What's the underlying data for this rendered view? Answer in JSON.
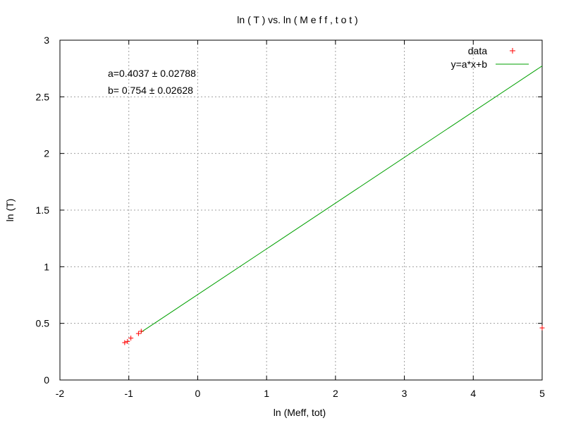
{
  "chart_data": {
    "type": "scatter",
    "title": "ln ( T )  vs.  ln ( M e f f , t o t )",
    "xlabel": "ln (Meff, tot)",
    "ylabel": "ln (T)",
    "xlim": [
      -2,
      5
    ],
    "ylim": [
      0,
      3
    ],
    "xticks": [
      -2,
      -1,
      0,
      1,
      2,
      3,
      4,
      5
    ],
    "yticks": [
      0,
      0.5,
      1,
      1.5,
      2,
      2.5,
      3
    ],
    "xtick_labels": [
      "-2",
      "-1",
      "0",
      "1",
      "2",
      "3",
      "4",
      "5"
    ],
    "ytick_labels": [
      "0",
      "0.5",
      "1",
      "1.5",
      "2",
      "2.5",
      "3"
    ],
    "grid": true,
    "legend_position": "top-right",
    "series": [
      {
        "name": "data",
        "kind": "points",
        "marker": "+",
        "color": "#ff0000",
        "points": [
          [
            -1.06,
            0.33
          ],
          [
            -1.02,
            0.34
          ],
          [
            -0.97,
            0.37
          ],
          [
            -0.86,
            0.41
          ],
          [
            -0.82,
            0.43
          ],
          [
            5.0,
            0.46
          ]
        ]
      },
      {
        "name": "y=a*x+b",
        "kind": "line",
        "color": "#00a000",
        "slope": 0.4037,
        "intercept": 0.754,
        "x_range": [
          -0.82,
          5.0
        ]
      }
    ],
    "annotations": [
      "a=0.4037 ± 0.02788",
      "b= 0.754 ± 0.02628"
    ]
  }
}
